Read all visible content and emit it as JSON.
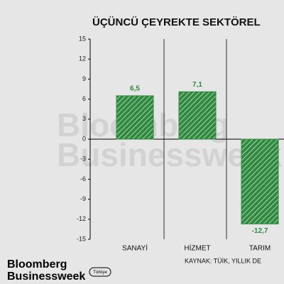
{
  "chart_data": {
    "type": "bar",
    "title": "ÜÇÜNCÜ ÇEYREKTE SEKTÖREL",
    "categories": [
      "SANAYİ",
      "HİZMET",
      "TARIM"
    ],
    "values": [
      6.5,
      7.1,
      -12.7
    ],
    "value_labels": [
      "6,5",
      "7,1",
      "-12,7"
    ],
    "color": "#2e8b3e",
    "ylim": [
      -15,
      15
    ],
    "yticks": [
      15,
      12,
      9,
      6,
      3,
      0,
      -3,
      -6,
      -9,
      -12,
      -15
    ],
    "watermark": [
      "Bloomberg",
      "Businessweek"
    ],
    "source": "KAYNAK: TÜİK, YILLIK DE",
    "logo": [
      "Bloomberg",
      "Businessweek"
    ],
    "badge": "Türkiye"
  }
}
